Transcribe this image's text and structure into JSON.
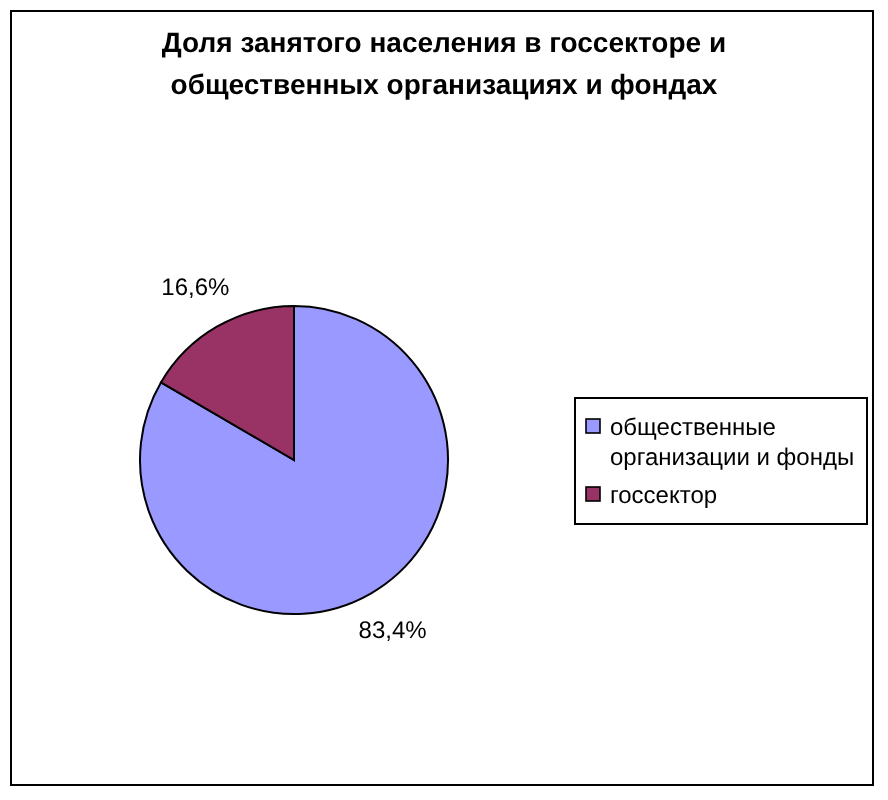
{
  "chart_data": {
    "type": "pie",
    "title": "Доля занятого населения в госсекторе и общественных организациях и фондах",
    "categories": [
      "общественные организации и фонды",
      "госсектор"
    ],
    "values": [
      83.4,
      16.6
    ],
    "colors": [
      "#9999ff",
      "#993366"
    ],
    "value_labels": [
      "83,4%",
      "16,6%"
    ],
    "legend": "right"
  }
}
